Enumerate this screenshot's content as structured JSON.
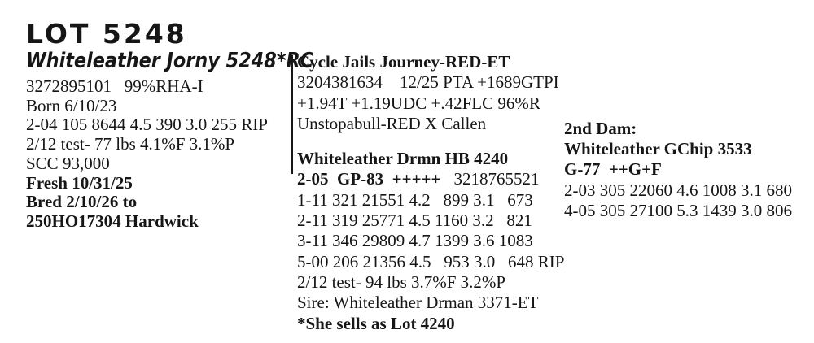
{
  "colors": {
    "background": "#ffffff",
    "text": "#161616"
  },
  "lot": {
    "title": "LOT 5248"
  },
  "animal": {
    "name": "Whiteleather Jorny 5248*RC",
    "reg_line": "3272895101   99%RHA-I",
    "born_line": "Born 6/10/23",
    "record_line": "2-04 105 8644 4.5 390 3.0 255 RIP",
    "test_line": "2/12 test- 77 lbs 4.1%F 3.1%P",
    "scc_line": "SCC 93,000",
    "fresh_line": "Fresh 10/31/25",
    "bred_line": "Bred 2/10/26 to",
    "service_sire_line": "250HO17304 Hardwick"
  },
  "sire": {
    "name": "Cycle Jails Journey-RED-ET",
    "reg_pta_line": "3204381634    12/25 PTA +1689GTPI",
    "traits_line": "+1.94T +1.19UDC +.42FLC 96%R",
    "pedigree_line": "Unstopabull-RED X Callen"
  },
  "dam": {
    "name": "Whiteleather Drmn HB 4240",
    "score_bold": "2-05  GP-83  +++++",
    "reg_number": "3218765521",
    "records": [
      "1-11 321 21551 4.2   899 3.1   673",
      "2-11 319 25771 4.5 1160 3.2   821",
      "3-11 346 29809 4.7 1399 3.6 1083",
      "5-00 206 21356 4.5   953 3.0   648 RIP"
    ],
    "test_line": "2/12 test- 94 lbs 3.7%F 3.2%P",
    "sire_line": "Sire: Whiteleather Drman 3371-ET",
    "sells_note": "*She sells as Lot 4240"
  },
  "second_dam": {
    "heading": "2nd Dam:",
    "name": "Whiteleather GChip 3533",
    "score_line": "G-77  ++G+F",
    "records": [
      "2-03 305 22060 4.6 1008 3.1 680",
      "4-05 305 27100 5.3 1439 3.0 806"
    ]
  }
}
